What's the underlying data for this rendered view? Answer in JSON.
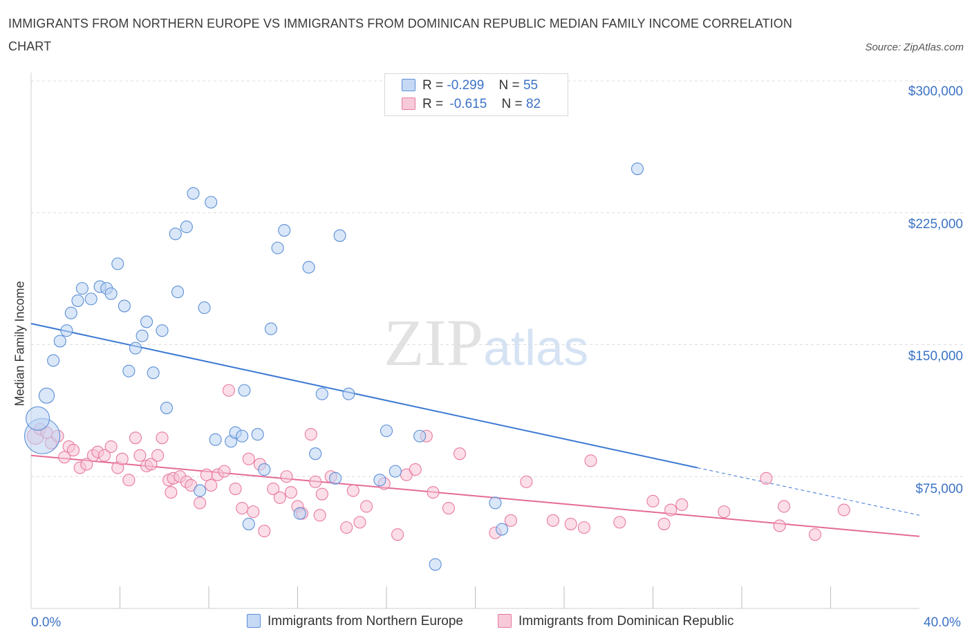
{
  "title": "IMMIGRANTS FROM NORTHERN EUROPE VS IMMIGRANTS FROM DOMINICAN REPUBLIC MEDIAN FAMILY INCOME CORRELATION CHART",
  "source": "Source: ZipAtlas.com",
  "watermark": {
    "zip": "ZIP",
    "atlas": "atlas"
  },
  "legend": {
    "rows": [
      {
        "r_label": "R =",
        "r_value": "-0.299",
        "n_label": "N =",
        "n_value": "55",
        "color": "#5b8fd6",
        "fill": "#c5d9f5"
      },
      {
        "r_label": "R =",
        "r_value": "-0.615",
        "n_label": "N =",
        "n_value": "82",
        "color": "#e8799f",
        "fill": "#f8c9d9"
      }
    ]
  },
  "bottom_legend": [
    {
      "label": "Immigrants from Northern Europe",
      "color": "#5b8fd6",
      "fill": "#c5d9f5"
    },
    {
      "label": "Immigrants from Dominican Republic",
      "color": "#e8799f",
      "fill": "#f8c9d9"
    }
  ],
  "chart_data": {
    "type": "scatter",
    "title": "IMMIGRANTS FROM NORTHERN EUROPE VS IMMIGRANTS FROM DOMINICAN REPUBLIC MEDIAN FAMILY INCOME CORRELATION CHART",
    "ylabel": "Median Family Income",
    "xlabel": "",
    "xlim": [
      0,
      40
    ],
    "ylim": [
      0,
      300000
    ],
    "x_tick_labels": [
      "0.0%",
      "40.0%"
    ],
    "y_tick_labels": [
      "$75,000",
      "$150,000",
      "$225,000",
      "$300,000"
    ],
    "y_ticks": [
      75000,
      150000,
      225000,
      300000
    ],
    "grid": true,
    "legend_position": "top-center",
    "colors": {
      "northern_europe": "#3b78d4",
      "dominican_republic": "#e56a98"
    },
    "series": [
      {
        "name": "Immigrants from Northern Europe",
        "R": -0.299,
        "N": 55,
        "trend": {
          "x0": 0.0,
          "y0": 162000,
          "x1": 30.0,
          "y1": 80000,
          "dash_to_x": 40.0,
          "dash_to_y": 53000
        },
        "points": [
          {
            "x": 0.5,
            "y": 98000,
            "s": 3
          },
          {
            "x": 0.3,
            "y": 108000,
            "s": 2
          },
          {
            "x": 0.7,
            "y": 121000,
            "s": 1.3
          },
          {
            "x": 1.0,
            "y": 141000
          },
          {
            "x": 1.3,
            "y": 152000
          },
          {
            "x": 1.6,
            "y": 158000
          },
          {
            "x": 1.8,
            "y": 168000
          },
          {
            "x": 2.1,
            "y": 175000
          },
          {
            "x": 2.3,
            "y": 182000
          },
          {
            "x": 2.7,
            "y": 176000
          },
          {
            "x": 3.1,
            "y": 183000
          },
          {
            "x": 3.4,
            "y": 182000
          },
          {
            "x": 3.6,
            "y": 179000
          },
          {
            "x": 3.9,
            "y": 196000
          },
          {
            "x": 4.2,
            "y": 172000
          },
          {
            "x": 4.4,
            "y": 135000
          },
          {
            "x": 4.7,
            "y": 148000
          },
          {
            "x": 5.0,
            "y": 155000
          },
          {
            "x": 5.2,
            "y": 163000
          },
          {
            "x": 5.5,
            "y": 134000
          },
          {
            "x": 5.9,
            "y": 158000
          },
          {
            "x": 6.1,
            "y": 114000
          },
          {
            "x": 6.5,
            "y": 213000
          },
          {
            "x": 6.6,
            "y": 180000
          },
          {
            "x": 7.0,
            "y": 217000
          },
          {
            "x": 7.3,
            "y": 236000
          },
          {
            "x": 7.6,
            "y": 67000
          },
          {
            "x": 7.8,
            "y": 171000
          },
          {
            "x": 8.1,
            "y": 231000
          },
          {
            "x": 8.3,
            "y": 96000
          },
          {
            "x": 9.0,
            "y": 95000
          },
          {
            "x": 9.2,
            "y": 100000
          },
          {
            "x": 9.5,
            "y": 98000
          },
          {
            "x": 9.6,
            "y": 124000
          },
          {
            "x": 9.8,
            "y": 48000
          },
          {
            "x": 10.2,
            "y": 99000
          },
          {
            "x": 10.5,
            "y": 79000
          },
          {
            "x": 10.8,
            "y": 159000
          },
          {
            "x": 11.1,
            "y": 205000
          },
          {
            "x": 11.4,
            "y": 215000
          },
          {
            "x": 12.1,
            "y": 54000
          },
          {
            "x": 12.5,
            "y": 194000
          },
          {
            "x": 12.8,
            "y": 88000
          },
          {
            "x": 13.1,
            "y": 122000
          },
          {
            "x": 13.7,
            "y": 74000
          },
          {
            "x": 13.9,
            "y": 212000
          },
          {
            "x": 14.3,
            "y": 122000
          },
          {
            "x": 15.7,
            "y": 73000
          },
          {
            "x": 16.0,
            "y": 101000
          },
          {
            "x": 16.4,
            "y": 78000
          },
          {
            "x": 17.5,
            "y": 98000
          },
          {
            "x": 18.2,
            "y": 25000
          },
          {
            "x": 20.9,
            "y": 60000
          },
          {
            "x": 21.2,
            "y": 45000
          },
          {
            "x": 27.3,
            "y": 250000
          }
        ]
      },
      {
        "name": "Immigrants from Dominican Republic",
        "R": -0.615,
        "N": 82,
        "trend": {
          "x0": 0.0,
          "y0": 87000,
          "x1": 40.0,
          "y1": 41000
        },
        "points": [
          {
            "x": 0.2,
            "y": 98000,
            "s": 1.4
          },
          {
            "x": 0.4,
            "y": 102000
          },
          {
            "x": 0.7,
            "y": 100000
          },
          {
            "x": 0.9,
            "y": 94000
          },
          {
            "x": 1.2,
            "y": 98000
          },
          {
            "x": 1.5,
            "y": 86000
          },
          {
            "x": 1.7,
            "y": 92000
          },
          {
            "x": 1.9,
            "y": 90000
          },
          {
            "x": 2.2,
            "y": 80000
          },
          {
            "x": 2.5,
            "y": 82000
          },
          {
            "x": 2.8,
            "y": 87000
          },
          {
            "x": 3.0,
            "y": 89000
          },
          {
            "x": 3.3,
            "y": 87000
          },
          {
            "x": 3.6,
            "y": 92000
          },
          {
            "x": 3.9,
            "y": 80000
          },
          {
            "x": 4.1,
            "y": 85000
          },
          {
            "x": 4.4,
            "y": 73000
          },
          {
            "x": 4.7,
            "y": 97000
          },
          {
            "x": 4.9,
            "y": 87000
          },
          {
            "x": 5.2,
            "y": 81000
          },
          {
            "x": 5.4,
            "y": 82000
          },
          {
            "x": 5.7,
            "y": 87000
          },
          {
            "x": 5.9,
            "y": 97000
          },
          {
            "x": 6.2,
            "y": 73000
          },
          {
            "x": 6.4,
            "y": 74000
          },
          {
            "x": 6.7,
            "y": 75000
          },
          {
            "x": 7.0,
            "y": 72000
          },
          {
            "x": 7.2,
            "y": 70000
          },
          {
            "x": 7.6,
            "y": 60000
          },
          {
            "x": 7.9,
            "y": 76000
          },
          {
            "x": 8.1,
            "y": 70000
          },
          {
            "x": 8.4,
            "y": 76000
          },
          {
            "x": 8.7,
            "y": 78000
          },
          {
            "x": 8.9,
            "y": 124000
          },
          {
            "x": 9.2,
            "y": 68000
          },
          {
            "x": 9.5,
            "y": 57000
          },
          {
            "x": 9.8,
            "y": 85000
          },
          {
            "x": 10.0,
            "y": 55000
          },
          {
            "x": 10.3,
            "y": 82000
          },
          {
            "x": 10.5,
            "y": 44000
          },
          {
            "x": 10.9,
            "y": 68000
          },
          {
            "x": 11.2,
            "y": 63000
          },
          {
            "x": 11.5,
            "y": 75000
          },
          {
            "x": 11.7,
            "y": 66000
          },
          {
            "x": 12.0,
            "y": 58000
          },
          {
            "x": 12.2,
            "y": 54000
          },
          {
            "x": 12.6,
            "y": 99000
          },
          {
            "x": 12.8,
            "y": 72000
          },
          {
            "x": 13.1,
            "y": 65000
          },
          {
            "x": 13.5,
            "y": 75000
          },
          {
            "x": 14.2,
            "y": 46000
          },
          {
            "x": 14.5,
            "y": 67000
          },
          {
            "x": 14.8,
            "y": 49000
          },
          {
            "x": 15.1,
            "y": 58000
          },
          {
            "x": 15.9,
            "y": 71000
          },
          {
            "x": 16.5,
            "y": 42000
          },
          {
            "x": 16.9,
            "y": 76000
          },
          {
            "x": 17.3,
            "y": 79000
          },
          {
            "x": 17.8,
            "y": 98000
          },
          {
            "x": 18.1,
            "y": 66000
          },
          {
            "x": 18.8,
            "y": 57000
          },
          {
            "x": 19.3,
            "y": 88000
          },
          {
            "x": 20.9,
            "y": 43000
          },
          {
            "x": 21.6,
            "y": 50000
          },
          {
            "x": 22.3,
            "y": 72000
          },
          {
            "x": 23.5,
            "y": 50000
          },
          {
            "x": 24.3,
            "y": 48000
          },
          {
            "x": 24.9,
            "y": 46000
          },
          {
            "x": 25.2,
            "y": 84000
          },
          {
            "x": 26.5,
            "y": 49000
          },
          {
            "x": 28.0,
            "y": 61000
          },
          {
            "x": 28.5,
            "y": 48000
          },
          {
            "x": 28.8,
            "y": 56000
          },
          {
            "x": 29.3,
            "y": 59000
          },
          {
            "x": 31.2,
            "y": 55000
          },
          {
            "x": 33.1,
            "y": 74000
          },
          {
            "x": 33.7,
            "y": 47000
          },
          {
            "x": 33.9,
            "y": 58000
          },
          {
            "x": 35.3,
            "y": 42000
          },
          {
            "x": 36.6,
            "y": 56000
          },
          {
            "x": 13.0,
            "y": 53000
          },
          {
            "x": 6.3,
            "y": 66000
          }
        ]
      }
    ]
  }
}
